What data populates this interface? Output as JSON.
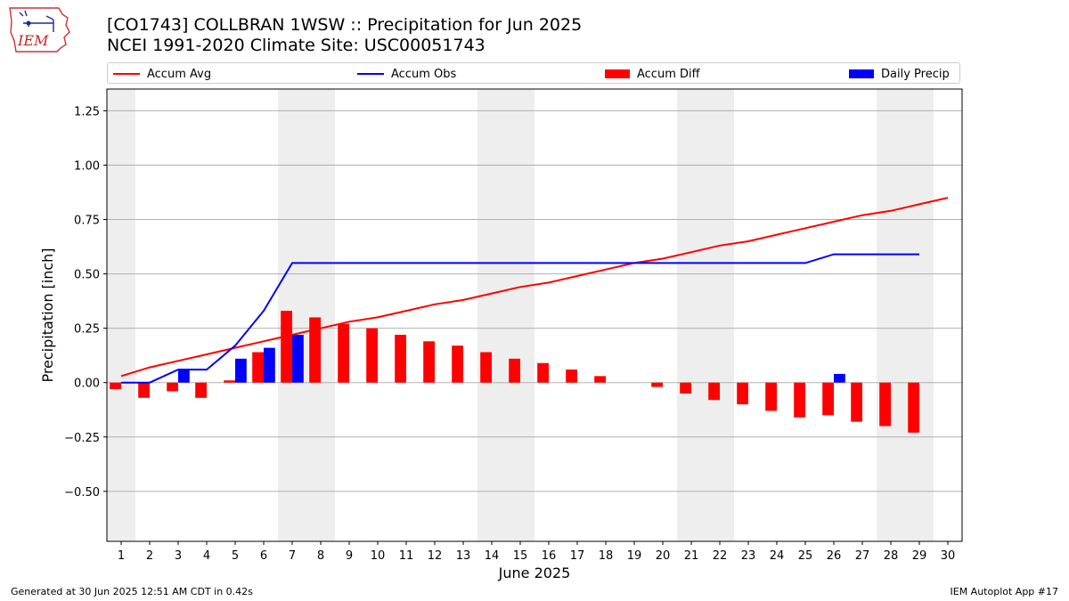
{
  "page": {
    "title_line1": "[CO1743] COLLBRAN 1WSW :: Precipitation for Jun 2025",
    "title_line2": "NCEI 1991-2020 Climate Site: USC00051743",
    "footer_left": "Generated at 30 Jun 2025 12:51 AM CDT in 0.42s",
    "footer_right": "IEM Autoplot App #17",
    "logo_text": "IEM"
  },
  "legend": [
    {
      "label": "Accum Avg",
      "color": "#ff0000",
      "kind": "line"
    },
    {
      "label": "Accum Obs",
      "color": "#0000ff",
      "kind": "line"
    },
    {
      "label": "Accum Diff",
      "color": "#ff0000",
      "kind": "bar"
    },
    {
      "label": "Daily Precip",
      "color": "#0000ff",
      "kind": "bar"
    }
  ],
  "chart_data": {
    "type": "bar",
    "xlabel": "June 2025",
    "ylabel": "Precipitation [inch]",
    "x": [
      1,
      2,
      3,
      4,
      5,
      6,
      7,
      8,
      9,
      10,
      11,
      12,
      13,
      14,
      15,
      16,
      17,
      18,
      19,
      20,
      21,
      22,
      23,
      24,
      25,
      26,
      27,
      28,
      29,
      30
    ],
    "xlim": [
      0.5,
      30.5
    ],
    "ylim": [
      -0.73,
      1.35
    ],
    "yticks": [
      -0.5,
      -0.25,
      0.0,
      0.25,
      0.5,
      0.75,
      1.0,
      1.25
    ],
    "ytick_labels": [
      "−0.50",
      "−0.25",
      "0.00",
      "0.25",
      "0.50",
      "0.75",
      "1.00",
      "1.25"
    ],
    "grid": true,
    "legend_position": "top",
    "weekend_shading": [
      [
        0.5,
        1.5
      ],
      [
        6.5,
        8.5
      ],
      [
        13.5,
        15.5
      ],
      [
        20.5,
        22.5
      ],
      [
        27.5,
        29.5
      ]
    ],
    "series": [
      {
        "name": "Accum Avg",
        "kind": "line",
        "color": "#ff0000",
        "values": [
          0.03,
          0.07,
          0.1,
          0.13,
          0.16,
          0.19,
          0.22,
          0.25,
          0.28,
          0.3,
          0.33,
          0.36,
          0.38,
          0.41,
          0.44,
          0.46,
          0.49,
          0.52,
          0.55,
          0.57,
          0.6,
          0.63,
          0.65,
          0.68,
          0.71,
          0.74,
          0.77,
          0.79,
          0.82,
          0.85
        ]
      },
      {
        "name": "Accum Obs",
        "kind": "line",
        "color": "#0000ff",
        "values": [
          0.0,
          0.0,
          0.06,
          0.06,
          0.17,
          0.33,
          0.55,
          0.55,
          0.55,
          0.55,
          0.55,
          0.55,
          0.55,
          0.55,
          0.55,
          0.55,
          0.55,
          0.55,
          0.55,
          0.55,
          0.55,
          0.55,
          0.55,
          0.55,
          0.55,
          0.59,
          0.59,
          0.59,
          0.59,
          null
        ]
      },
      {
        "name": "Accum Diff",
        "kind": "bar",
        "color": "#ff0000",
        "values": [
          -0.03,
          -0.07,
          -0.04,
          -0.07,
          0.01,
          0.14,
          0.33,
          0.3,
          0.27,
          0.25,
          0.22,
          0.19,
          0.17,
          0.14,
          0.11,
          0.09,
          0.06,
          0.03,
          0.0,
          -0.02,
          -0.05,
          -0.08,
          -0.1,
          -0.13,
          -0.16,
          -0.15,
          -0.18,
          -0.2,
          -0.23,
          null
        ]
      },
      {
        "name": "Daily Precip",
        "kind": "bar",
        "color": "#0000ff",
        "values": [
          0.0,
          0.0,
          0.06,
          0.0,
          0.11,
          0.16,
          0.22,
          0.0,
          0.0,
          0.0,
          0.0,
          0.0,
          0.0,
          0.0,
          0.0,
          0.0,
          0.0,
          0.0,
          0.0,
          0.0,
          0.0,
          0.0,
          0.0,
          0.0,
          0.0,
          0.04,
          0.0,
          0.0,
          0.0,
          null
        ]
      }
    ]
  }
}
